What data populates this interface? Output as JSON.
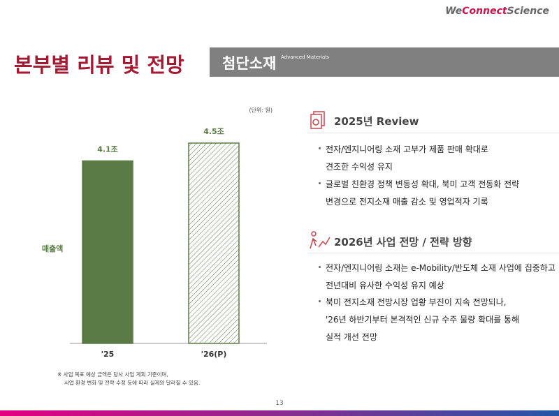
{
  "header": {
    "logo": [
      "We",
      "Connect",
      "Science"
    ],
    "title": "본부별 리뷰 및 전망",
    "section": "첨단소재",
    "section_sub": "Advanced Materials"
  },
  "chart_data": {
    "type": "bar",
    "unit_note": "(단위: 원)",
    "y_label": "매출액",
    "categories": [
      "'25",
      "'26(P)"
    ],
    "values": [
      4.1,
      4.5
    ],
    "value_labels": [
      "4.1조",
      "4.5조"
    ],
    "color": "#5b7b46",
    "fills": [
      "solid",
      "hatched"
    ]
  },
  "footnote": [
    "※ 사업 목표 예상 금액은 당사 사업 계획 기준이며,",
    "사업 환경 변화 및 전략 수정 등에 따라 실제와 달라질 수 있음."
  ],
  "sections": [
    {
      "heading": "2025년 Review",
      "bullets": [
        [
          "전자/엔지니어링 소재 고부가 제품 판매 확대로",
          "견조한 수익성 유지"
        ],
        [
          "글로벌 친환경 정책 변동성 확대, 북미 고객 전동화 전략",
          "변경으로 전지소재 매출 감소 및 영업적자 기록"
        ]
      ]
    },
    {
      "heading": "2026년 사업 전망 / 전략 방향",
      "bullets": [
        [
          "전자/엔지니어링 소재는 e-Mobility/반도체 소재 사업에 집중하고",
          "전년대비 유사한 수익성 유지 예상"
        ],
        [
          "북미 전지소재 전방시장 업황 부진이 지속 전망되나,",
          "'26년 하반기부터 본격적인 신규 수주 물량 확대를 통해",
          "실적 개선 전망"
        ]
      ]
    }
  ],
  "page_number": "13"
}
